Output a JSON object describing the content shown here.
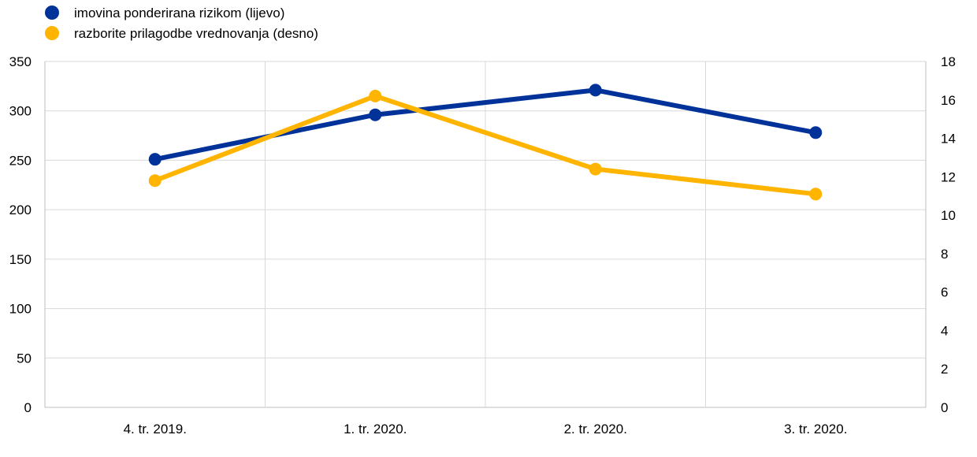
{
  "chart_data": {
    "type": "line",
    "categories": [
      "4. tr. 2019.",
      "1. tr. 2020.",
      "2. tr. 2020.",
      "3. tr. 2020."
    ],
    "series": [
      {
        "name": "imovina ponderirana rizikom (lijevo)",
        "axis": "left",
        "color": "#003299",
        "values": [
          251,
          296,
          321,
          278
        ]
      },
      {
        "name": "razborite prilagodbe vrednovanja (desno)",
        "axis": "right",
        "color": "#FFB400",
        "values": [
          11.8,
          16.2,
          12.4,
          11.1
        ]
      }
    ],
    "y_left": {
      "min": 0,
      "max": 350,
      "ticks": [
        "0",
        "50",
        "100",
        "150",
        "200",
        "250",
        "300",
        "350"
      ]
    },
    "y_right": {
      "min": 0,
      "max": 18,
      "ticks": [
        "0",
        "2",
        "4",
        "6",
        "8",
        "10",
        "12",
        "14",
        "16",
        "18"
      ]
    },
    "grid": true,
    "legend_position": "top-left"
  }
}
